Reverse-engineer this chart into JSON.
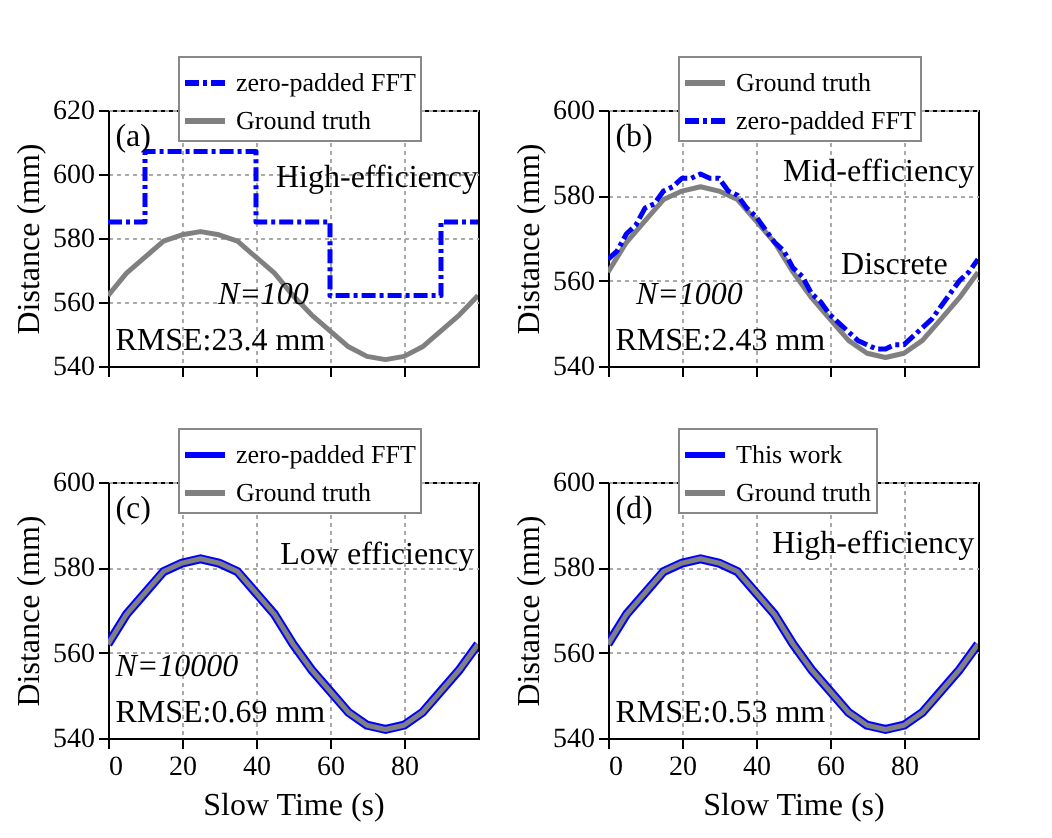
{
  "chart_data": [
    {
      "type": "line",
      "ylabel": "Distance (mm)",
      "xlim": [
        0,
        100
      ],
      "xticks": [
        0,
        20,
        40,
        60,
        80
      ],
      "ylim": [
        540,
        620
      ],
      "yticks": [
        540,
        560,
        580,
        600,
        620
      ],
      "grid": true,
      "legend": "top right",
      "tick_labels": "y",
      "annotations": [
        "(a)",
        "High-efficiency",
        "N=100",
        "RMSE:23.4 mm"
      ],
      "series": [
        {
          "name": "zero-padded FFT",
          "type": "step",
          "color": "#0000ff",
          "line_style": "dashed",
          "x": [
            0,
            10,
            40,
            60,
            90,
            100
          ],
          "values": [
            585,
            607,
            585,
            562,
            585,
            585
          ]
        },
        {
          "name": "Ground truth",
          "color": "#808080",
          "line_style": "solid",
          "x": [
            0,
            5,
            10,
            15,
            20,
            25,
            30,
            35,
            40,
            45,
            50,
            55,
            60,
            65,
            70,
            75,
            80,
            85,
            90,
            95,
            100
          ],
          "values": [
            562,
            569,
            574,
            579,
            581,
            582,
            581,
            579,
            574,
            569,
            562,
            556,
            551,
            546,
            543,
            542,
            543,
            546,
            551,
            556,
            562
          ]
        }
      ]
    },
    {
      "type": "line",
      "ylabel": "Distance (mm)",
      "xlim": [
        0,
        100
      ],
      "xticks": [
        0,
        20,
        40,
        60,
        80
      ],
      "ylim": [
        540,
        600
      ],
      "yticks": [
        540,
        560,
        580,
        600
      ],
      "grid": true,
      "legend": "top right",
      "tick_labels": "y",
      "annotations": [
        "(b)",
        "Mid-efficiency",
        "Discrete",
        "N=1000",
        "RMSE:2.43 mm"
      ],
      "series": [
        {
          "name": "Ground truth",
          "type": "line",
          "color": "#808080",
          "line_style": "solid",
          "x": [
            0,
            5,
            10,
            15,
            20,
            25,
            30,
            35,
            40,
            45,
            50,
            55,
            60,
            65,
            70,
            75,
            80,
            85,
            90,
            95,
            100
          ],
          "values": [
            562,
            569,
            574,
            579,
            581,
            582,
            581,
            579,
            574,
            569,
            562,
            556,
            551,
            546,
            543,
            542,
            543,
            546,
            551,
            556,
            562
          ]
        },
        {
          "name": "zero-padded FFT",
          "type": "line",
          "color": "#0000ff",
          "line_style": "dashed",
          "x": [
            0,
            2.5,
            5,
            7.5,
            10,
            12.5,
            15,
            17.5,
            20,
            22.5,
            25,
            27.5,
            30,
            32.5,
            35,
            37.5,
            40,
            42.5,
            45,
            47.5,
            50,
            52.5,
            55,
            57.5,
            60,
            62.5,
            65,
            67.5,
            70,
            72.5,
            75,
            77.5,
            80,
            82.5,
            85,
            87.5,
            90,
            92.5,
            95,
            97.5,
            100
          ],
          "values": [
            565,
            567,
            571,
            573,
            577,
            578,
            581,
            582,
            584,
            584,
            585,
            584,
            584,
            581,
            580,
            577,
            575,
            572,
            569,
            567,
            563,
            561,
            557,
            555,
            552,
            550,
            548,
            546,
            545,
            544,
            544,
            545,
            545,
            547,
            549,
            551,
            554,
            557,
            560,
            562,
            565
          ]
        }
      ]
    },
    {
      "type": "line",
      "xlabel": "Slow Time (s)",
      "ylabel": "Distance (mm)",
      "xlim": [
        0,
        100
      ],
      "xticks": [
        0,
        20,
        40,
        60,
        80
      ],
      "ylim": [
        540,
        600
      ],
      "yticks": [
        540,
        560,
        580,
        600
      ],
      "grid": true,
      "legend": "top right",
      "annotations": [
        "(c)",
        "Low efficiency",
        "N=10000",
        "RMSE:0.69 mm"
      ],
      "series": [
        {
          "name": "zero-padded FFT",
          "type": "line",
          "color": "#0000ff",
          "line_style": "solid",
          "x": [
            0,
            5,
            10,
            15,
            20,
            25,
            30,
            35,
            40,
            45,
            50,
            55,
            60,
            65,
            70,
            75,
            80,
            85,
            90,
            95,
            100
          ],
          "values": [
            562,
            569,
            574,
            579,
            581,
            582,
            581,
            579,
            574,
            569,
            562,
            556,
            551,
            546,
            543,
            542,
            543,
            546,
            551,
            556,
            562
          ]
        },
        {
          "name": "Ground truth",
          "type": "line",
          "color": "#808080",
          "line_style": "solid",
          "x": [
            0,
            5,
            10,
            15,
            20,
            25,
            30,
            35,
            40,
            45,
            50,
            55,
            60,
            65,
            70,
            75,
            80,
            85,
            90,
            95,
            100
          ],
          "values": [
            562,
            569,
            574,
            579,
            581,
            582,
            581,
            579,
            574,
            569,
            562,
            556,
            551,
            546,
            543,
            542,
            543,
            546,
            551,
            556,
            562
          ]
        }
      ]
    },
    {
      "type": "line",
      "xlabel": "Slow Time (s)",
      "ylabel": "Distance (mm)",
      "xlim": [
        0,
        100
      ],
      "xticks": [
        0,
        20,
        40,
        60,
        80
      ],
      "ylim": [
        540,
        600
      ],
      "yticks": [
        540,
        560,
        580,
        600
      ],
      "grid": true,
      "legend": "top right",
      "annotations": [
        "(d)",
        "High-efficiency",
        "RMSE:0.53 mm"
      ],
      "series": [
        {
          "name": "This work",
          "type": "line",
          "color": "#0000ff",
          "line_style": "solid",
          "x": [
            0,
            5,
            10,
            15,
            20,
            25,
            30,
            35,
            40,
            45,
            50,
            55,
            60,
            65,
            70,
            75,
            80,
            85,
            90,
            95,
            100
          ],
          "values": [
            562,
            569,
            574,
            579,
            581,
            582,
            581,
            579,
            574,
            569,
            562,
            556,
            551,
            546,
            543,
            542,
            543,
            546,
            551,
            556,
            562
          ]
        },
        {
          "name": "Ground truth",
          "type": "line",
          "color": "#808080",
          "line_style": "solid",
          "x": [
            0,
            5,
            10,
            15,
            20,
            25,
            30,
            35,
            40,
            45,
            50,
            55,
            60,
            65,
            70,
            75,
            80,
            85,
            90,
            95,
            100
          ],
          "values": [
            562,
            569,
            574,
            579,
            581,
            582,
            581,
            579,
            574,
            569,
            562,
            556,
            551,
            546,
            543,
            542,
            543,
            546,
            551,
            556,
            562
          ]
        }
      ]
    }
  ]
}
